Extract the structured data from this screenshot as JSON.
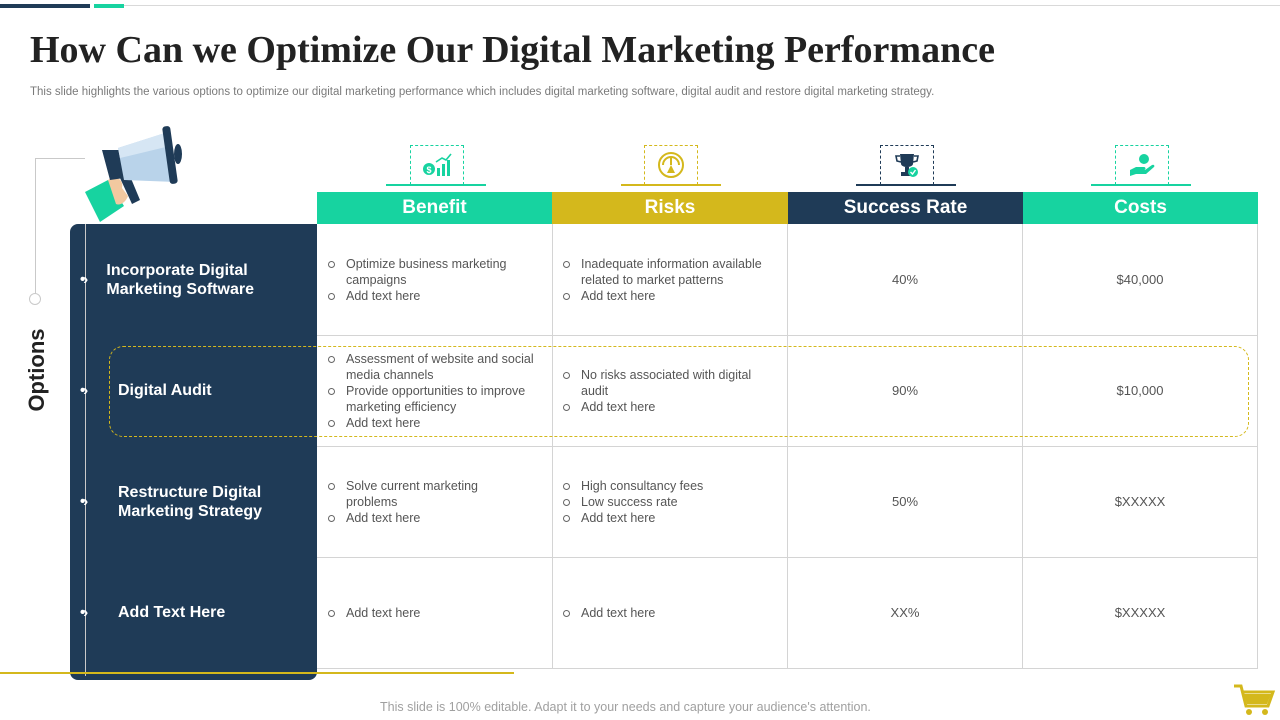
{
  "slide": {
    "title": "How Can we Optimize Our Digital Marketing Performance",
    "subtitle": "This slide highlights the various options to optimize our digital marketing performance which includes digital marketing software, digital audit and restore digital marketing strategy.",
    "options_label": "Options",
    "footer": "This slide is 100% editable. Adapt it to your needs and capture your audience's attention."
  },
  "colors": {
    "navy": "#1f3b57",
    "green": "#17d3a0",
    "gold": "#d4b81c"
  },
  "columns": [
    {
      "label": "Benefit",
      "icon": "growth-chart-icon"
    },
    {
      "label": "Risks",
      "icon": "speedometer-icon"
    },
    {
      "label": "Success Rate",
      "icon": "trophy-icon"
    },
    {
      "label": "Costs",
      "icon": "hand-money-icon"
    }
  ],
  "rows": [
    {
      "option": "Incorporate Digital Marketing Software",
      "benefit": [
        "Optimize business marketing campaigns",
        "Add text here"
      ],
      "risks": [
        "Inadequate information available related to market patterns",
        "Add text here"
      ],
      "success_rate": "40%",
      "cost": "$40,000"
    },
    {
      "option": "Digital Audit",
      "benefit": [
        "Assessment of website and social media channels",
        "Provide opportunities to improve marketing efficiency",
        "Add text here"
      ],
      "risks": [
        "No risks associated with digital audit",
        "Add text here"
      ],
      "success_rate": "90%",
      "cost": "$10,000"
    },
    {
      "option": "Restructure Digital Marketing Strategy",
      "benefit": [
        "Solve current marketing problems",
        "Add text here"
      ],
      "risks": [
        "High consultancy fees",
        "Low success rate",
        "Add text here"
      ],
      "success_rate": "50%",
      "cost": "$XXXXX"
    },
    {
      "option": "Add Text Here",
      "benefit": [
        "Add text here"
      ],
      "risks": [
        "Add text here"
      ],
      "success_rate": "XX%",
      "cost": "$XXXXX"
    }
  ]
}
